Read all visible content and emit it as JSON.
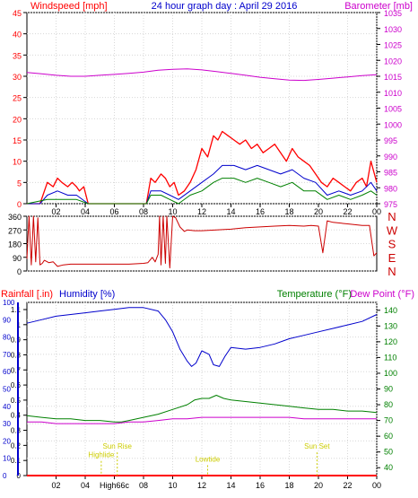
{
  "colors": {
    "wind": "#ff0000",
    "gust": "#ff0000",
    "wind_avg": "#0000cc",
    "wind_min": "#008000",
    "barometer": "#cc00cc",
    "direction": "#cc0000",
    "humidity": "#0000cc",
    "temperature": "#008000",
    "dewpoint": "#cc00cc",
    "rainfall": "#ff0000",
    "title": "#0000cc",
    "annotation": "#cccc00"
  },
  "chart_data": [
    {
      "type": "line",
      "title": "24 hour graph day : April 29 2016",
      "ylabel": "Windspeed [mph]",
      "y2label": "Barometer [mb]",
      "ylim": [
        0,
        45
      ],
      "y2lim": [
        975,
        1035
      ],
      "left_ticks": [
        "0",
        "5",
        "10",
        "15",
        "20",
        "25",
        "30",
        "35",
        "40",
        "45"
      ],
      "right_ticks": [
        "975",
        "980",
        "985",
        "990",
        "995",
        "1000",
        "1005",
        "1010",
        "1015",
        "1020",
        "1025",
        "1030",
        "1035"
      ],
      "x_ticks": [
        "02",
        "04",
        "06",
        "08",
        "10",
        "12",
        "14",
        "16",
        "18",
        "20",
        "22",
        "00"
      ],
      "grid": true,
      "series": [
        {
          "name": "Windspeed [mph]",
          "x": [
            0,
            0.9,
            1.1,
            1.4,
            1.8,
            2.1,
            2.4,
            2.8,
            3.1,
            3.4,
            3.6,
            3.9,
            4.2,
            5,
            6,
            7,
            8.2,
            8.5,
            8.8,
            9.2,
            9.5,
            9.8,
            10.1,
            10.4,
            10.8,
            11.2,
            11.6,
            12,
            12.4,
            12.8,
            13.1,
            13.4,
            13.8,
            14.2,
            14.6,
            15,
            15.4,
            15.8,
            16.2,
            16.6,
            17,
            17.4,
            17.8,
            18.2,
            18.6,
            19,
            19.4,
            19.8,
            20.2,
            20.6,
            21,
            21.4,
            21.8,
            22.2,
            22.6,
            23,
            23.3,
            23.6,
            24
          ],
          "values": [
            0,
            0,
            2,
            5,
            4,
            6,
            5,
            4,
            5,
            4,
            3,
            4,
            0,
            0,
            0,
            0,
            0,
            6,
            5,
            7,
            6,
            4,
            5,
            2,
            3,
            5,
            8,
            13,
            11,
            16,
            15,
            17,
            16,
            15,
            14,
            15,
            13,
            14,
            12,
            13,
            14,
            12,
            10,
            13,
            11,
            10,
            9,
            7,
            5,
            4,
            6,
            5,
            4,
            3,
            5,
            6,
            4,
            10,
            5
          ]
        },
        {
          "name": "Windspeed avg",
          "x": [
            0,
            0.9,
            1.4,
            2.1,
            2.8,
            3.4,
            4.2,
            8.2,
            8.5,
            9.2,
            9.8,
            10.4,
            11.2,
            12,
            12.8,
            13.4,
            14.2,
            15,
            15.8,
            16.6,
            17.4,
            18.2,
            19,
            19.8,
            20.6,
            21.4,
            22.2,
            23,
            23.6,
            24
          ],
          "values": [
            0,
            0,
            2,
            3,
            2,
            2,
            0,
            0,
            3,
            3,
            2,
            1,
            3,
            5,
            7,
            9,
            9,
            8,
            9,
            8,
            7,
            8,
            6,
            5,
            2,
            3,
            2,
            3,
            5,
            3
          ]
        },
        {
          "name": "Windspeed min",
          "x": [
            0,
            1.4,
            2.1,
            2.8,
            3.4,
            4.2,
            8.2,
            8.5,
            9.2,
            9.8,
            10.4,
            11.2,
            12,
            12.8,
            13.4,
            14.2,
            15,
            15.8,
            16.6,
            17.4,
            18.2,
            19,
            19.8,
            20.6,
            21.4,
            22.2,
            23,
            23.6,
            24
          ],
          "values": [
            0,
            1,
            1,
            1,
            1,
            0,
            0,
            2,
            2,
            1,
            0,
            2,
            3,
            5,
            6,
            6,
            5,
            6,
            5,
            4,
            5,
            3,
            3,
            1,
            2,
            1,
            2,
            3,
            2
          ]
        },
        {
          "name": "Barometer [mb]",
          "axis": "right",
          "x": [
            0,
            1,
            2,
            3,
            4,
            5,
            6,
            7,
            8,
            9,
            10,
            11,
            12,
            13,
            14,
            15,
            16,
            17,
            18,
            19,
            20,
            21,
            22,
            23,
            24
          ],
          "values": [
            1016.2,
            1015.8,
            1015.3,
            1015.0,
            1015.0,
            1015.3,
            1015.6,
            1015.9,
            1016.3,
            1016.9,
            1017.2,
            1017.3,
            1017.0,
            1016.5,
            1015.9,
            1015.3,
            1014.7,
            1014.2,
            1013.8,
            1013.7,
            1014.0,
            1014.4,
            1014.8,
            1015.2,
            1015.5
          ]
        }
      ]
    },
    {
      "type": "line",
      "ylim": [
        0,
        360
      ],
      "left_ticks": [
        "0",
        "90",
        "180",
        "270",
        "360"
      ],
      "compass": [
        "N",
        "W",
        "S",
        "E",
        "N"
      ],
      "series": [
        {
          "name": "Wind direction",
          "x": [
            0,
            0.15,
            0.3,
            0.45,
            0.6,
            0.75,
            0.9,
            1.05,
            1.2,
            1.5,
            1.8,
            2.1,
            2.5,
            3,
            4,
            5,
            6,
            7,
            8,
            8.3,
            8.6,
            8.8,
            9,
            9.1,
            9.2,
            9.35,
            9.5,
            9.6,
            9.8,
            10,
            10.2,
            10.5,
            10.8,
            11,
            11.5,
            12,
            13,
            14,
            15,
            16,
            17,
            18,
            19,
            19.5,
            20,
            20.3,
            20.6,
            21,
            22,
            23,
            23.5,
            23.8,
            24
          ],
          "values": [
            80,
            360,
            40,
            360,
            60,
            350,
            40,
            50,
            70,
            55,
            60,
            30,
            40,
            45,
            45,
            45,
            45,
            45,
            50,
            55,
            90,
            60,
            110,
            360,
            40,
            360,
            50,
            360,
            20,
            360,
            350,
            290,
            260,
            270,
            265,
            265,
            270,
            275,
            285,
            290,
            295,
            300,
            295,
            300,
            295,
            120,
            330,
            320,
            310,
            300,
            300,
            100,
            120
          ]
        }
      ]
    },
    {
      "type": "line",
      "ylabel": "Rainfall [.in)",
      "y2label": "Humidity [%)",
      "y3label": "Temperature (°F)",
      "y4label": "Dew Point (°F)",
      "rain_ticks": [
        "0",
        "0.1",
        "0.2",
        "0.3",
        "0.4",
        "0.5",
        "0.6",
        "0.7",
        "0.8",
        "0.9",
        "1",
        "1.1"
      ],
      "humidity_ticks": [
        "0",
        "10",
        "20",
        "30",
        "40",
        "50",
        "60",
        "70",
        "80",
        "90",
        "100"
      ],
      "temp_ticks": [
        "40",
        "50",
        "60",
        "70",
        "80",
        "90",
        "100",
        "110",
        "120",
        "130",
        "140"
      ],
      "ylim": [
        0,
        100
      ],
      "y3lim": [
        35,
        145
      ],
      "x_ticks": [
        "02",
        "04",
        "High66c",
        "08",
        "10",
        "12",
        "14",
        "16",
        "18",
        "20",
        "22",
        "00"
      ],
      "annotations": [
        {
          "text": "Sun Rise",
          "x": 6.2,
          "level": 0.155
        },
        {
          "text": "Highlide",
          "x": 5.1,
          "level": 0.105
        },
        {
          "text": "Lowtide",
          "x": 12.4,
          "level": 0.08
        },
        {
          "text": "Sun Set",
          "x": 19.9,
          "level": 0.155
        }
      ],
      "series": [
        {
          "name": "Humidity [%)",
          "x": [
            0,
            1,
            2,
            3,
            4,
            5,
            6,
            7,
            8,
            9,
            9.5,
            10,
            10.5,
            11,
            11.3,
            11.6,
            12,
            12.5,
            12.8,
            13.2,
            13.6,
            14,
            15,
            16,
            17,
            18,
            19,
            20,
            21,
            22,
            23,
            24
          ],
          "values": [
            88,
            90,
            92,
            93,
            94,
            95,
            96,
            97,
            97,
            95,
            90,
            83,
            73,
            66,
            63,
            65,
            72,
            70,
            64,
            63,
            69,
            74,
            73,
            74,
            76,
            79,
            81,
            83,
            85,
            87,
            89,
            93
          ]
        },
        {
          "name": "Temperature (°F)",
          "x": [
            0,
            1,
            2,
            3,
            4,
            5,
            6,
            6.5,
            7,
            8,
            9,
            10,
            11,
            11.5,
            12,
            12.5,
            13,
            13.5,
            14,
            15,
            16,
            17,
            18,
            19,
            20,
            21,
            22,
            23,
            24
          ],
          "values": [
            73,
            72,
            71,
            71,
            70,
            70,
            69,
            69,
            70,
            72,
            74,
            77,
            80,
            83,
            84,
            84,
            86,
            84,
            83,
            82,
            81,
            80,
            79,
            78,
            77,
            77,
            76,
            76,
            75
          ]
        },
        {
          "name": "Dew Point (°F)",
          "x": [
            0,
            1,
            2,
            3,
            4,
            5,
            6,
            7,
            8,
            9,
            10,
            11,
            12,
            13,
            14,
            15,
            16,
            17,
            18,
            19,
            20,
            21,
            22,
            23,
            24
          ],
          "values": [
            69,
            69,
            68,
            68,
            68,
            68,
            68,
            69,
            69,
            70,
            71,
            71,
            72,
            72,
            72,
            72,
            72,
            72,
            72,
            71,
            71,
            71,
            71,
            71,
            71
          ]
        },
        {
          "name": "Rainfall [.in)",
          "x": [
            0,
            24
          ],
          "values": [
            0,
            0
          ]
        }
      ]
    }
  ]
}
